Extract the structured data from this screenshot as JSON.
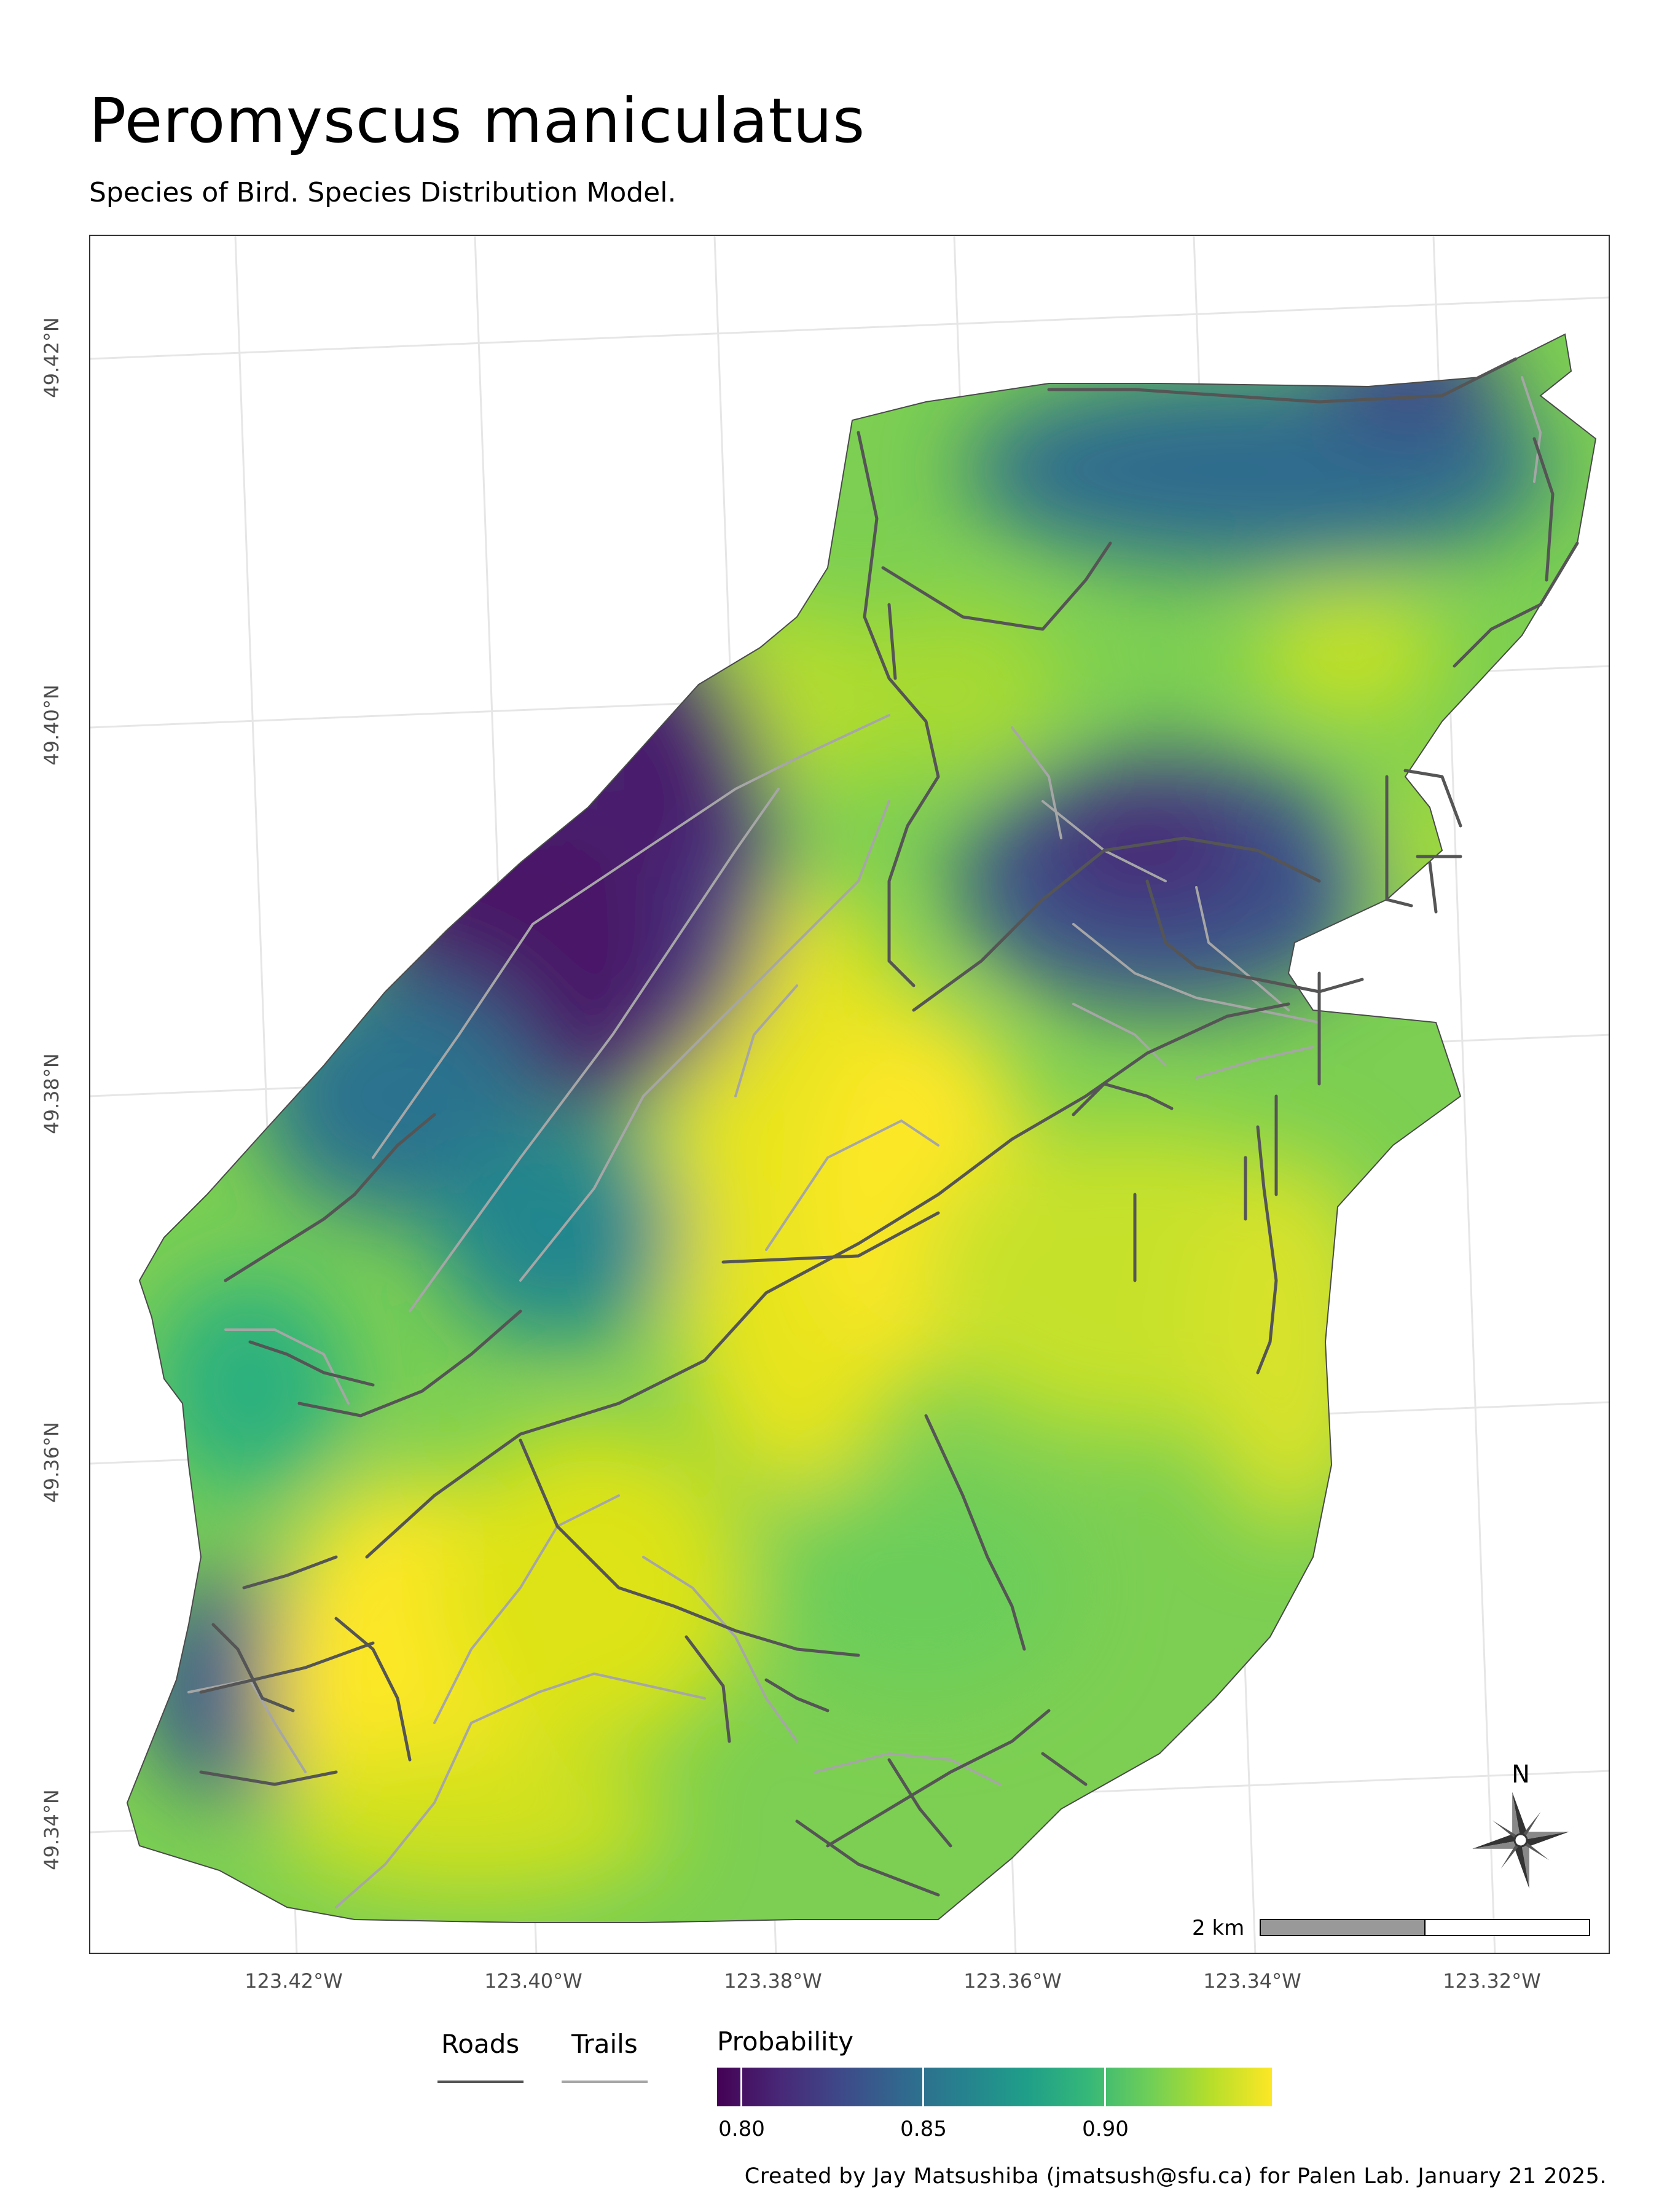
{
  "title": "Peromyscus maniculatus",
  "subtitle": "Species of Bird. Species Distribution Model.",
  "map": {
    "y_axis_labels": [
      "49.42°N",
      "49.40°N",
      "49.38°N",
      "49.36°N",
      "49.34°N"
    ],
    "x_axis_labels": [
      "123.42°W",
      "123.40°W",
      "123.38°W",
      "123.36°W",
      "123.34°W",
      "123.32°W"
    ],
    "north_arrow_label": "N",
    "scale_bar_label": "2 km",
    "colors": {
      "roads": "#555555",
      "trails": "#a6a6a6",
      "graticule": "#e6e6e6"
    }
  },
  "legend": {
    "roads_label": "Roads",
    "trails_label": "Trails",
    "probability_title": "Probability",
    "probability_ticks": [
      "0.80",
      "0.85",
      "0.90"
    ],
    "colormap": "viridis"
  },
  "credit": "Created by Jay Matsushiba (jmatsush@sfu.ca) for Palen Lab. January 21 2025."
}
